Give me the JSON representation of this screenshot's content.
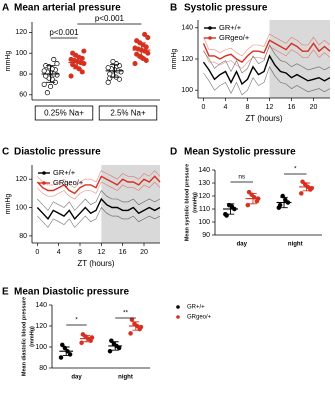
{
  "chart_data": [
    {
      "type": "strip",
      "label": "A",
      "title": "Mean arterial pressure",
      "ylabel": [
        "mmHg"
      ],
      "categories": [
        "0.25% Na+",
        "2.5% Na+"
      ],
      "category_boxes": true,
      "ylim": [
        55,
        130
      ],
      "yticks": [
        60,
        80,
        100,
        120
      ],
      "series": [
        {
          "color": "#000000",
          "marker": "open",
          "values": [
            [
              70,
              72,
              75,
              76,
              78,
              79,
              80,
              81,
              82,
              83,
              84,
              85,
              87,
              88,
              90,
              94,
              68,
              62
            ],
            [
              72,
              75,
              77,
              79,
              80,
              82,
              83,
              84,
              85,
              86,
              88,
              90,
              92,
              76
            ]
          ],
          "means": [
            80,
            83
          ],
          "errors": [
            8,
            6
          ]
        },
        {
          "color": "#d7301f",
          "marker": "filled",
          "values": [
            [
              78,
              82,
              85,
              87,
              89,
              90,
              91,
              92,
              93,
              94,
              95,
              96,
              98,
              100,
              102
            ],
            [
              90,
              93,
              95,
              97,
              99,
              100,
              102,
              103,
              104,
              105,
              106,
              108,
              110,
              112,
              115,
              118,
              96
            ]
          ],
          "means": [
            91,
            103
          ],
          "errors": [
            6,
            7
          ]
        }
      ],
      "annotations": [
        "p<0.001",
        "p<0.001"
      ]
    },
    {
      "type": "line",
      "label": "B",
      "title": "Systolic pressure",
      "ylabel": [
        "mmHg"
      ],
      "xlabel": "ZT (hours)",
      "x": [
        0,
        1,
        2,
        3,
        4,
        5,
        6,
        7,
        8,
        9,
        10,
        11,
        12,
        13,
        14,
        15,
        16,
        17,
        18,
        19,
        20,
        21,
        22,
        23
      ],
      "xlim": [
        -1,
        23
      ],
      "xticks": [
        0,
        4,
        8,
        12,
        16,
        20
      ],
      "ylim": [
        95,
        145
      ],
      "yticks": [
        100,
        120,
        140
      ],
      "shade": [
        12,
        23
      ],
      "legend": "upper left",
      "series": [
        {
          "name": "GR+/+",
          "color": "#000000",
          "values": [
            118,
            113,
            107,
            110,
            112,
            105,
            112,
            104,
            107,
            115,
            110,
            112,
            122,
            116,
            112,
            111,
            108,
            110,
            108,
            106,
            107,
            108,
            106,
            108
          ],
          "errors": [
            7,
            7,
            7,
            7,
            7,
            7,
            7,
            7,
            7,
            7,
            7,
            7,
            7,
            7,
            7,
            7,
            7,
            7,
            7,
            7,
            7,
            7,
            7,
            7
          ]
        },
        {
          "name": "GRgeo/+",
          "color": "#d7301f",
          "values": [
            130,
            122,
            122,
            120,
            122,
            123,
            120,
            118,
            122,
            125,
            125,
            124,
            132,
            130,
            128,
            126,
            130,
            128,
            125,
            125,
            130,
            125,
            128,
            125
          ],
          "errors": [
            4,
            4,
            4,
            4,
            4,
            4,
            4,
            4,
            4,
            4,
            4,
            4,
            4,
            4,
            4,
            4,
            4,
            4,
            4,
            4,
            4,
            4,
            4,
            4
          ]
        }
      ]
    },
    {
      "type": "line",
      "label": "C",
      "title": "Diastolic pressure",
      "ylabel": [
        "mmHg"
      ],
      "xlabel": "ZT (hours)",
      "x": [
        0,
        1,
        2,
        3,
        4,
        5,
        6,
        7,
        8,
        9,
        10,
        11,
        12,
        13,
        14,
        15,
        16,
        17,
        18,
        19,
        20,
        21,
        22,
        23
      ],
      "xlim": [
        -1,
        23
      ],
      "xticks": [
        0,
        4,
        8,
        12,
        16,
        20
      ],
      "ylim": [
        75,
        130
      ],
      "yticks": [
        80,
        100,
        120
      ],
      "shade": [
        12,
        23
      ],
      "legend": "upper left",
      "series": [
        {
          "name": "GR+/+",
          "color": "#000000",
          "values": [
            100,
            96,
            92,
            98,
            96,
            94,
            98,
            92,
            96,
            100,
            96,
            98,
            106,
            102,
            100,
            100,
            98,
            98,
            100,
            96,
            98,
            100,
            98,
            100
          ],
          "errors": [
            6,
            6,
            6,
            6,
            6,
            6,
            6,
            6,
            6,
            6,
            6,
            6,
            6,
            6,
            6,
            6,
            6,
            6,
            6,
            6,
            6,
            6,
            6,
            6
          ]
        },
        {
          "name": "GRgeo/+",
          "color": "#d7301f",
          "values": [
            118,
            114,
            112,
            112,
            114,
            116,
            112,
            110,
            114,
            116,
            116,
            114,
            122,
            120,
            118,
            116,
            120,
            118,
            118,
            116,
            120,
            118,
            122,
            118
          ],
          "errors": [
            4,
            4,
            4,
            4,
            4,
            4,
            4,
            4,
            4,
            4,
            4,
            4,
            4,
            4,
            4,
            4,
            4,
            4,
            4,
            4,
            4,
            4,
            4,
            4
          ]
        }
      ]
    },
    {
      "type": "strip",
      "label": "D",
      "title": "Mean Systolic pressure",
      "ylabel": [
        "Mean systolic blood pressure",
        "(mmHg)"
      ],
      "categories": [
        "day",
        "night"
      ],
      "ylim": [
        90,
        140
      ],
      "yticks": [
        90,
        100,
        110,
        120,
        130,
        140
      ],
      "series": [
        {
          "color": "#000000",
          "marker": "filled",
          "values": [
            [
              106,
              110,
              112,
              113,
              105
            ],
            [
              111,
              115,
              117,
              120,
              113
            ]
          ],
          "means": [
            110,
            115
          ],
          "errors": [
            4,
            4
          ]
        },
        {
          "color": "#d7301f",
          "marker": "filled",
          "values": [
            [
              113,
              116,
              119,
              121,
              123,
              118
            ],
            [
              122,
              125,
              127,
              129,
              131,
              126
            ]
          ],
          "means": [
            118,
            127
          ],
          "errors": [
            4,
            3
          ]
        }
      ],
      "annotations": [
        "ns",
        "*"
      ]
    },
    {
      "type": "strip",
      "label": "E",
      "title": "Mean Diastolic pressure",
      "ylabel": [
        "Mean diastolic blood pressure",
        "(mmHg)"
      ],
      "categories": [
        "day",
        "night"
      ],
      "ylim": [
        80,
        140
      ],
      "yticks": [
        80,
        100,
        120,
        140
      ],
      "legend": "right",
      "series": [
        {
          "name": "GR+/+",
          "color": "#000000",
          "marker": "filled",
          "values": [
            [
              90,
              93,
              96,
              99,
              102
            ],
            [
              96,
              99,
              101,
              103,
              106
            ]
          ],
          "means": [
            96,
            101
          ],
          "errors": [
            4,
            4
          ]
        },
        {
          "name": "GRgeo/+",
          "color": "#d7301f",
          "marker": "filled",
          "values": [
            [
              104,
              106,
              108,
              110,
              112,
              109
            ],
            [
              113,
              117,
              120,
              122,
              126,
              119
            ]
          ],
          "means": [
            108,
            120
          ],
          "errors": [
            3,
            4
          ]
        }
      ],
      "annotations": [
        "*",
        "**"
      ]
    }
  ]
}
